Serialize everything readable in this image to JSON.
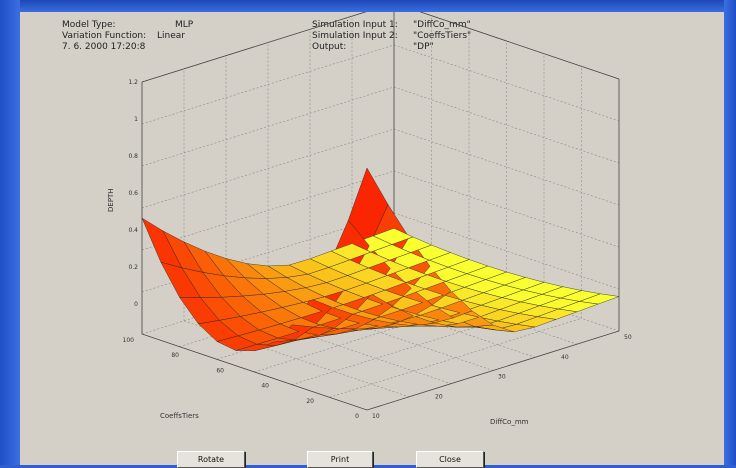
{
  "header": {
    "model_type_label": "Model Type:",
    "model_type_value": "MLP",
    "variation_label": "Variation Function:",
    "variation_value": "Linear",
    "datetime": "7. 6. 2000   17:20:8",
    "sim_input_1_label": "Simulation Input 1:",
    "sim_input_1_value": "\"DiffCo_mm\"",
    "sim_input_2_label": "Simulation Input 2:",
    "sim_input_2_value": "\"CoeffsTiers\"",
    "output_label": "Output:",
    "output_value": "\"DP\""
  },
  "chart_data": {
    "type": "surface",
    "zlabel": "DEPTH",
    "xlabel": "CoeffsTiers",
    "ylabel": "DiffCo_mm",
    "z_ticks": [
      "1.2",
      "1",
      "0.8",
      "0.6",
      "0.4",
      "0.2",
      "0"
    ],
    "x_ticks": [
      "100",
      "80",
      "60",
      "40",
      "20",
      "0"
    ],
    "y_ticks": [
      "10",
      "20",
      "30",
      "40",
      "50"
    ],
    "colormap": "autumn",
    "colors": {
      "red": "#e80000",
      "yellow": "#ffff30"
    }
  },
  "buttons": {
    "rotate": "Rotate",
    "print": "Print",
    "close": "Close"
  }
}
